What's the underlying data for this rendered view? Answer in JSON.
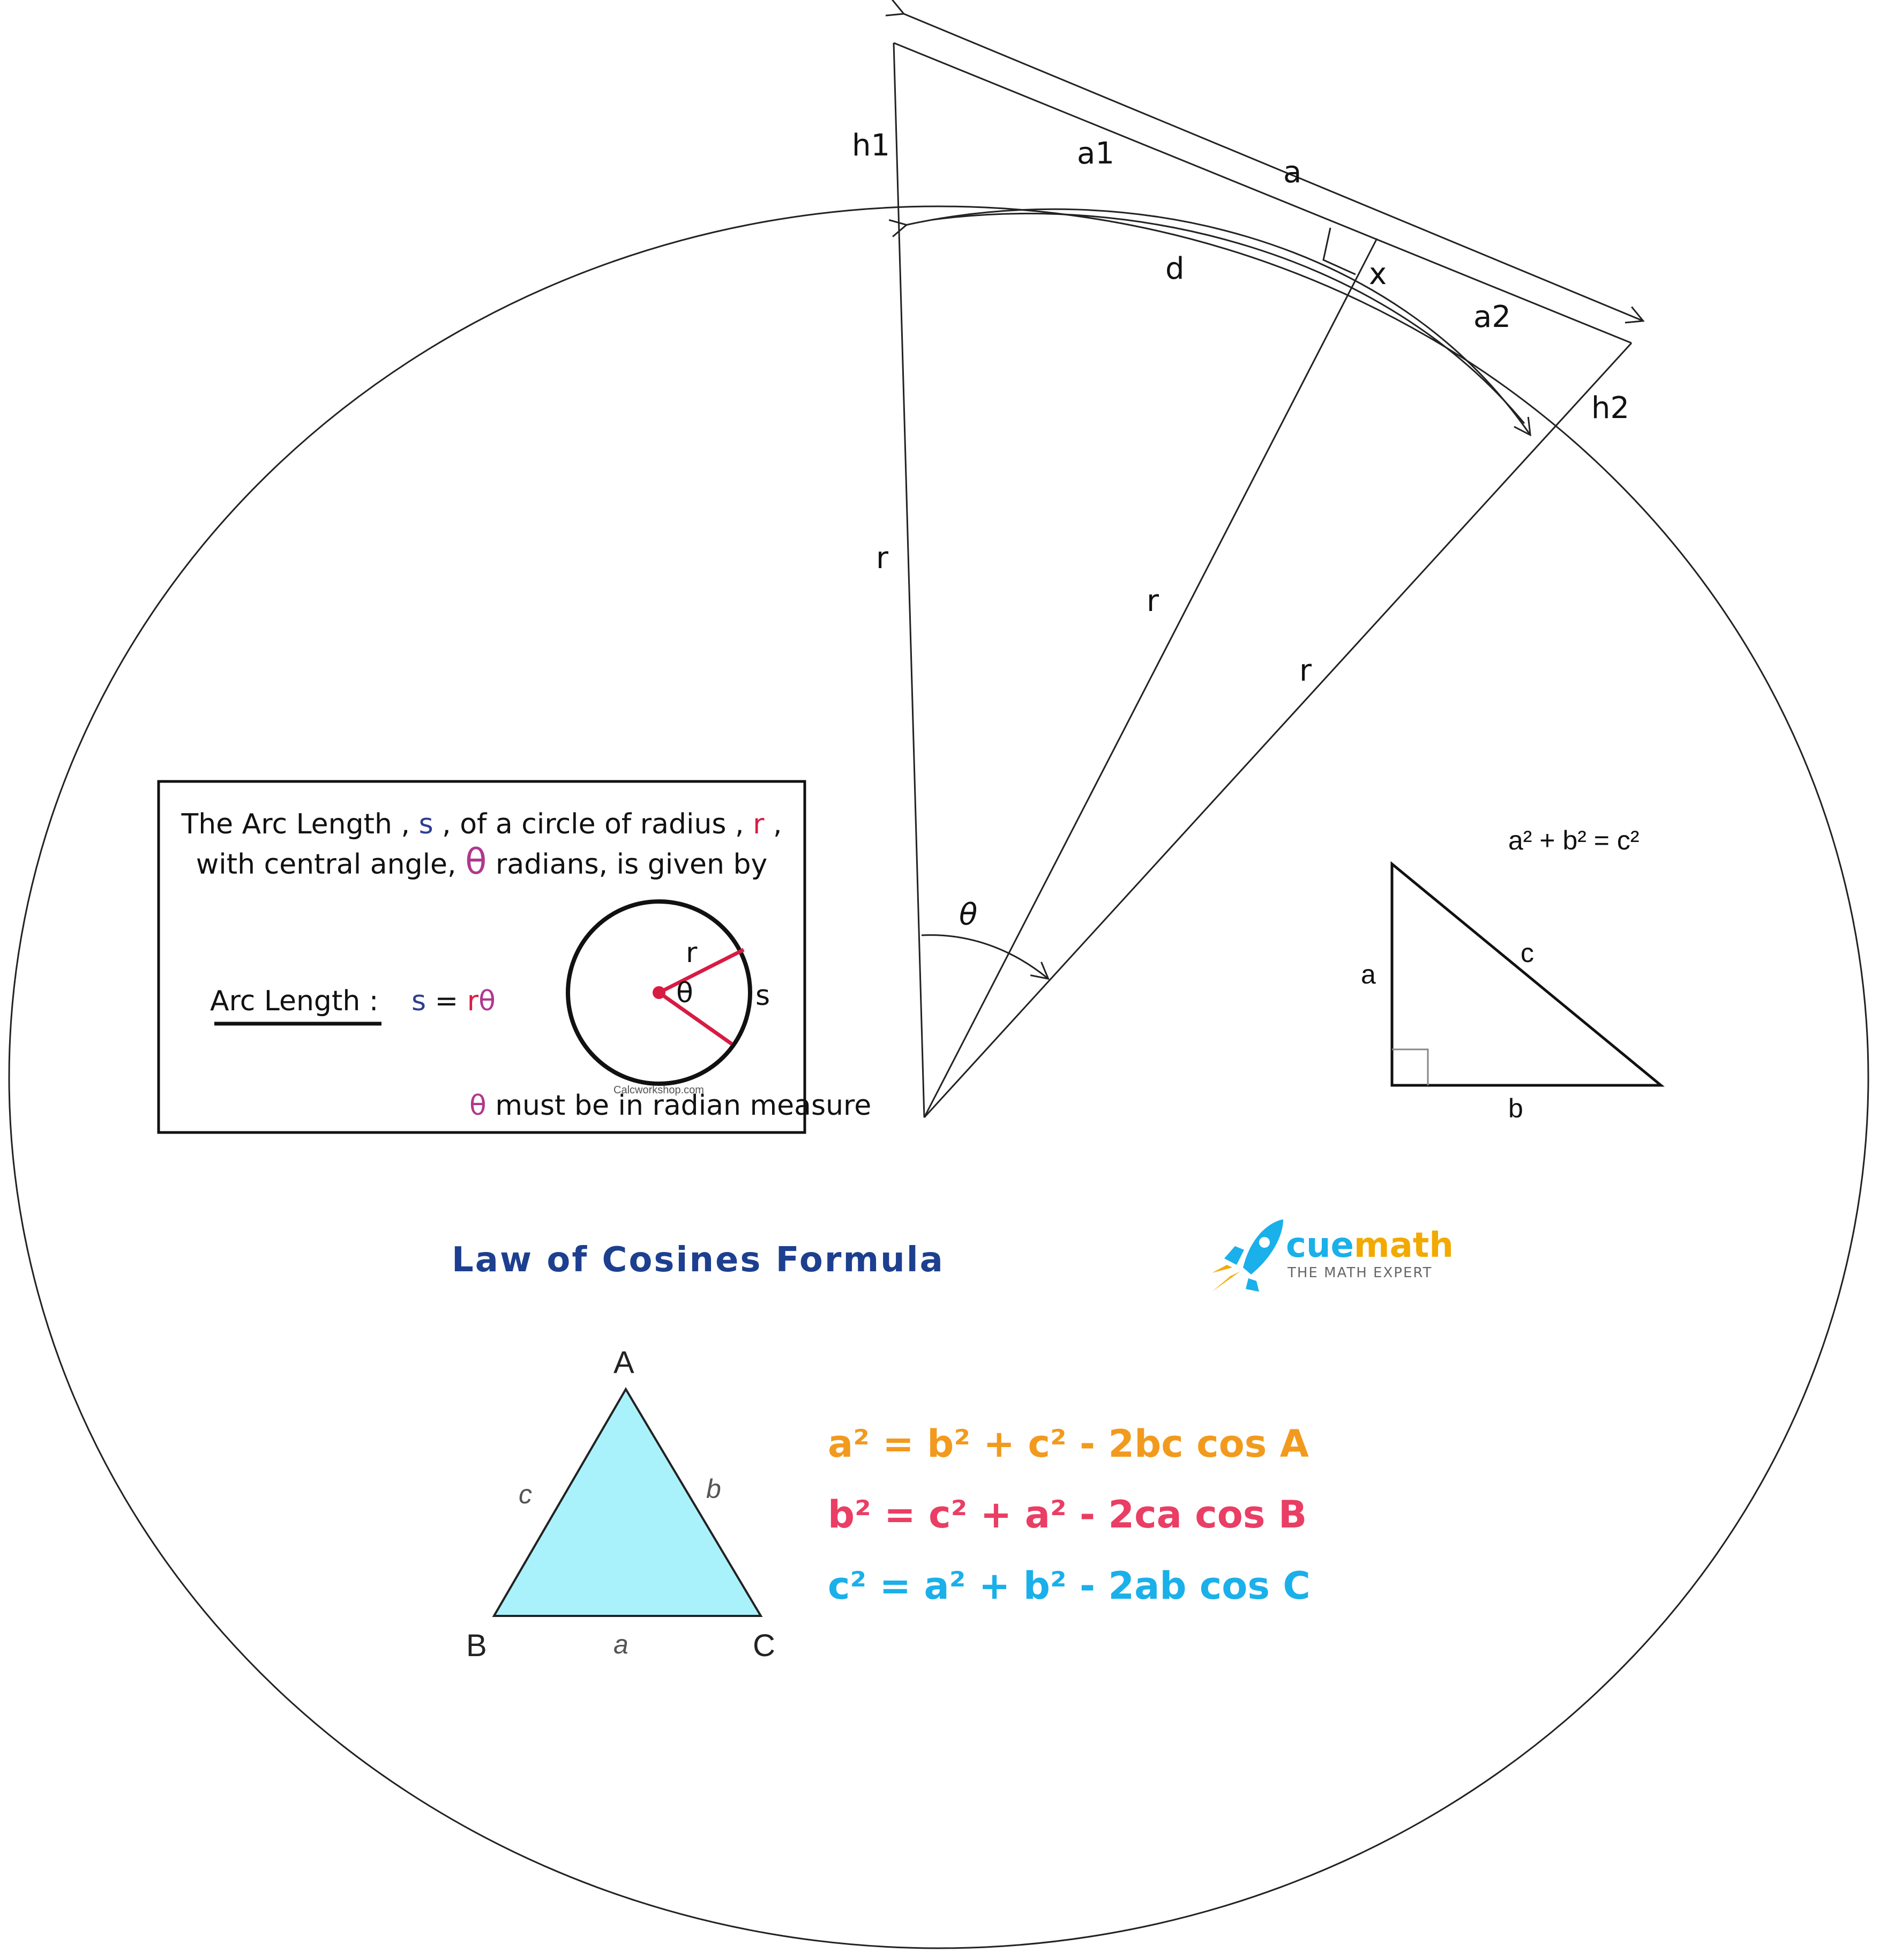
{
  "colors": {
    "formula_a": "#f29a1e",
    "formula_b": "#ea3e64",
    "formula_c": "#1ab0ea",
    "law_title": "#1d3f8f",
    "triangle_fill": "#aaf2fb",
    "arc_s": "#2c3e92",
    "arc_r": "#d81b43",
    "arc_theta": "#b0388e",
    "logo_blue": "#1ab0ea",
    "logo_orange": "#f2a900"
  },
  "sketch": {
    "labels": {
      "h1": "h1",
      "a1": "a1",
      "a": "a",
      "d": "d",
      "x": "x",
      "a2": "a2",
      "h2": "h2",
      "r_left": "r",
      "r_mid": "r",
      "r_right": "r",
      "theta": "θ"
    }
  },
  "arc_box": {
    "line1_a": "The Arc Length , ",
    "line1_s": "s",
    "line1_b": " , of a circle of radius , ",
    "line1_r": "r",
    "line1_c": " ,",
    "line2_a": "with central angle, ",
    "line2_theta": "θ",
    "line2_b": " radians, is given by",
    "formula_label": "Arc Length :",
    "formula_s": "s",
    "formula_eq": " = ",
    "formula_r": "r",
    "formula_theta": "θ",
    "circle_r": "r",
    "circle_theta": "θ",
    "circle_s": "s",
    "watermark": "Calcworkshop.com",
    "note_theta": "θ",
    "note": " must be in radian measure"
  },
  "pythagoras": {
    "formula": "a² + b² = c²",
    "label_a": "a",
    "label_b": "b",
    "label_c": "c"
  },
  "law_of_cosines": {
    "title": "Law of Cosines Formula",
    "vertex_A": "A",
    "vertex_B": "B",
    "vertex_C": "C",
    "side_a": "a",
    "side_b": "b",
    "side_c": "c",
    "formula_1": "a² = b² + c² - 2bc cos A",
    "formula_2": "b² = c² + a² - 2ca cos B",
    "formula_3": "c² = a² + b² - 2ab cos C"
  },
  "logo": {
    "name": "cuemath",
    "name_cue": "cue",
    "name_math": "math",
    "tagline": "THE MATH EXPERT"
  }
}
